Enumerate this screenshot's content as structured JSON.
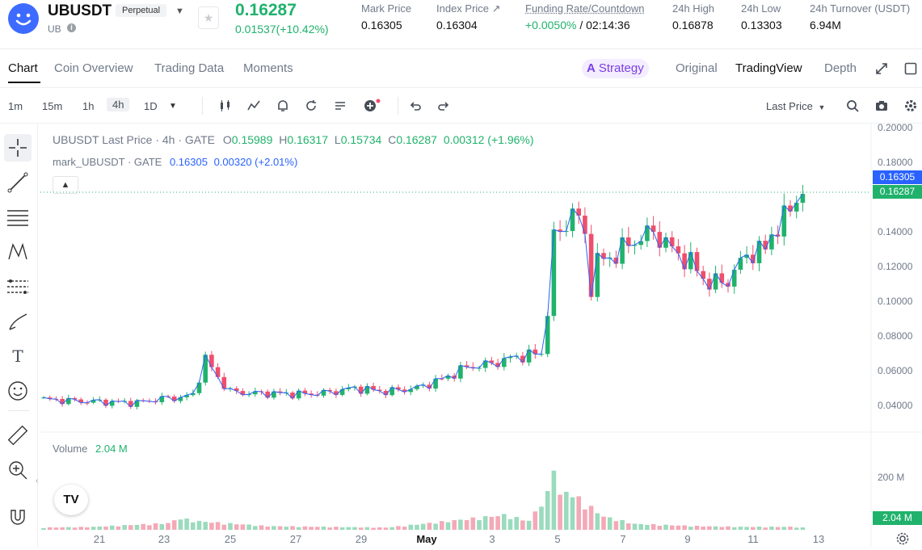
{
  "header": {
    "symbol": "UBUSDT",
    "contract_type": "Perpetual",
    "base": "UB",
    "last_price": "0.16287",
    "change": "0.01537(+10.42%)",
    "stats": [
      {
        "label": "Mark Price",
        "value": "0.16305"
      },
      {
        "label": "Index Price ↗",
        "value": "0.16304"
      },
      {
        "label": "Funding Rate/Countdown",
        "value_rate": "+0.0050%",
        "value_rest": "/ 02:14:36"
      },
      {
        "label": "24h High",
        "value": "0.16878"
      },
      {
        "label": "24h Low",
        "value": "0.13303"
      },
      {
        "label": "24h Turnover (USDT)",
        "value": "6.94M"
      }
    ]
  },
  "tabs": [
    "Chart",
    "Coin Overview",
    "Trading Data",
    "Moments"
  ],
  "right_tabs": {
    "strategy": "Strategy",
    "original": "Original",
    "tradingview": "TradingView",
    "depth": "Depth"
  },
  "toolbar": {
    "timeframes": [
      "1m",
      "15m",
      "1h",
      "4h",
      "1D"
    ],
    "price_type": "Last Price"
  },
  "legend": {
    "line1_prefix": "UBUSDT Last Price · 4h · GATE",
    "ohlc": {
      "o": "0.15989",
      "h": "0.16317",
      "l": "0.15734",
      "c": "0.16287",
      "chg": "0.00312 (+1.96%)"
    },
    "line2_prefix": "mark_UBUSDT · GATE",
    "mark_val": "0.16305",
    "mark_chg": "0.00320 (+2.01%)"
  },
  "volume": {
    "label": "Volume",
    "value": "2.04 M",
    "axis_label": "200 M",
    "tag": "2.04 M"
  },
  "price_tags": {
    "mark": "0.16305",
    "last": "0.16287"
  },
  "colors": {
    "up": "#20b26c",
    "down": "#ef4f6c",
    "mark_tag": "#2962ff",
    "accent_strategy": "#7b3fe4"
  },
  "chart_data": {
    "type": "candlestick",
    "interval": "4h",
    "y_ticks": [
      "0.20000",
      "0.18000",
      "0.14000",
      "0.12000",
      "0.10000",
      "0.08000",
      "0.06000",
      "0.04000"
    ],
    "x_ticks": [
      "21",
      "23",
      "25",
      "27",
      "29",
      "May",
      "3",
      "5",
      "7",
      "9",
      "11",
      "13"
    ],
    "close_path": [
      [
        0,
        0.0435
      ],
      [
        6,
        0.0425
      ],
      [
        10,
        0.042
      ],
      [
        15,
        0.0415
      ],
      [
        19,
        0.044
      ],
      [
        22,
        0.0445
      ],
      [
        24,
        0.046
      ],
      [
        26,
        0.067
      ],
      [
        28,
        0.056
      ],
      [
        30,
        0.048
      ],
      [
        33,
        0.047
      ],
      [
        36,
        0.047
      ],
      [
        42,
        0.0465
      ],
      [
        46,
        0.0475
      ],
      [
        50,
        0.05
      ],
      [
        55,
        0.048
      ],
      [
        60,
        0.05
      ],
      [
        64,
        0.055
      ],
      [
        68,
        0.062
      ],
      [
        72,
        0.064
      ],
      [
        76,
        0.068
      ],
      [
        80,
        0.07
      ],
      [
        81,
        0.095
      ],
      [
        82,
        0.135
      ],
      [
        84,
        0.145
      ],
      [
        85,
        0.153
      ],
      [
        87,
        0.138
      ],
      [
        88,
        0.108
      ],
      [
        89,
        0.123
      ],
      [
        91,
        0.125
      ],
      [
        95,
        0.135
      ],
      [
        98,
        0.14
      ],
      [
        101,
        0.13
      ],
      [
        104,
        0.122
      ],
      [
        107,
        0.11
      ],
      [
        110,
        0.112
      ],
      [
        113,
        0.127
      ],
      [
        116,
        0.13
      ],
      [
        117,
        0.139
      ],
      [
        119,
        0.147
      ],
      [
        121,
        0.16
      ],
      [
        122,
        0.163
      ]
    ],
    "volume_bars": [
      [
        0,
        3
      ],
      [
        8,
        4
      ],
      [
        20,
        9
      ],
      [
        22,
        16
      ],
      [
        24,
        12
      ],
      [
        36,
        5
      ],
      [
        55,
        3
      ],
      [
        62,
        9
      ],
      [
        74,
        20
      ],
      [
        78,
        12
      ],
      [
        81,
        48
      ],
      [
        82,
        96
      ],
      [
        83,
        45
      ],
      [
        84,
        52
      ],
      [
        86,
        42
      ],
      [
        88,
        30
      ],
      [
        90,
        18
      ],
      [
        95,
        8
      ],
      [
        105,
        5
      ],
      [
        112,
        4
      ],
      [
        120,
        4
      ],
      [
        122,
        3
      ]
    ]
  }
}
